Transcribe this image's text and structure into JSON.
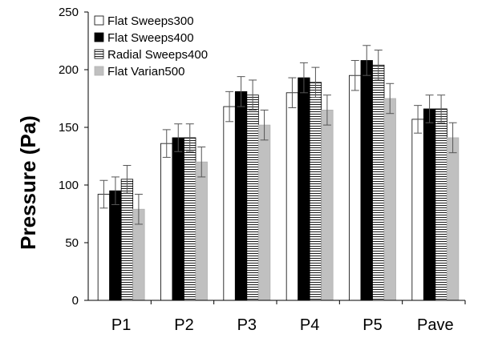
{
  "chart_data": {
    "type": "bar",
    "title": "",
    "xlabel": "",
    "ylabel": "Pressure (Pa)",
    "ylim": [
      0,
      250
    ],
    "yticks": [
      0,
      50,
      100,
      150,
      200,
      250
    ],
    "grid": false,
    "legend_position": "top-left",
    "categories": [
      "P1",
      "P2",
      "P3",
      "P4",
      "P5",
      "Pave"
    ],
    "series": [
      {
        "name": "Flat Sweeps300",
        "fill": "#ffffff",
        "pattern": "none",
        "values": [
          92,
          136,
          168,
          180,
          195,
          157
        ],
        "errors": [
          12,
          12,
          13,
          13,
          13,
          12
        ]
      },
      {
        "name": "Flat Sweeps400",
        "fill": "#000000",
        "pattern": "none",
        "values": [
          95,
          141,
          181,
          193,
          208,
          166
        ],
        "errors": [
          12,
          12,
          13,
          13,
          13,
          12
        ]
      },
      {
        "name": "Radial Sweeps400",
        "fill": "#ffffff",
        "pattern": "horizontal-lines",
        "values": [
          105,
          141,
          178,
          189,
          204,
          166
        ],
        "errors": [
          12,
          12,
          13,
          13,
          13,
          12
        ]
      },
      {
        "name": "Flat Varian500",
        "fill": "#c0c0c0",
        "pattern": "none",
        "values": [
          79,
          120,
          152,
          165,
          175,
          141
        ],
        "errors": [
          13,
          13,
          13,
          13,
          13,
          13
        ]
      }
    ]
  }
}
